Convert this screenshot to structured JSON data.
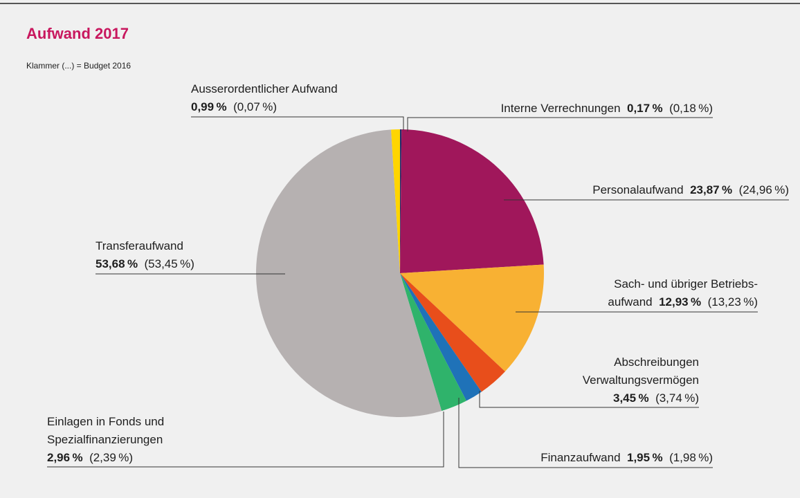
{
  "chart_data": {
    "type": "pie",
    "title": "Aufwand 2017",
    "subtitle": "Klammer (...) = Budget 2016",
    "categories": [
      [
        "Interne Verrechnungen"
      ],
      [
        "Personalaufwand"
      ],
      [
        "Sach- und übriger Betriebs-",
        "aufwand"
      ],
      [
        "Abschreibungen",
        "Verwaltungsvermögen"
      ],
      [
        "Finanzaufwand"
      ],
      [
        "Einlagen in Fonds und",
        "Spezialfinanzierungen"
      ],
      [
        "Transferaufwand"
      ],
      [
        "Ausserordentlicher Aufwand"
      ]
    ],
    "values": [
      0.17,
      23.87,
      12.93,
      3.45,
      1.95,
      2.96,
      53.68,
      0.99
    ],
    "value_labels": [
      "0,17 %",
      "23,87 %",
      "12,93 %",
      "3,45 %",
      "1,95 %",
      "2,96 %",
      "53,68 %",
      "0,99 %"
    ],
    "budget_values": [
      0.18,
      24.96,
      13.23,
      3.74,
      1.98,
      2.39,
      53.45,
      0.07
    ],
    "budget_labels": [
      "(0,18 %)",
      "(24,96 %)",
      "(13,23 %)",
      "(3,74 %)",
      "(1,98 %)",
      "(2,39 %)",
      "(53,45 %)",
      "(0,07 %)"
    ],
    "colors": [
      "#1d2b6e",
      "#a0175b",
      "#f8b133",
      "#e84e1b",
      "#1f72b8",
      "#2fb36b",
      "#b6b1b1",
      "#ffd500"
    ]
  }
}
